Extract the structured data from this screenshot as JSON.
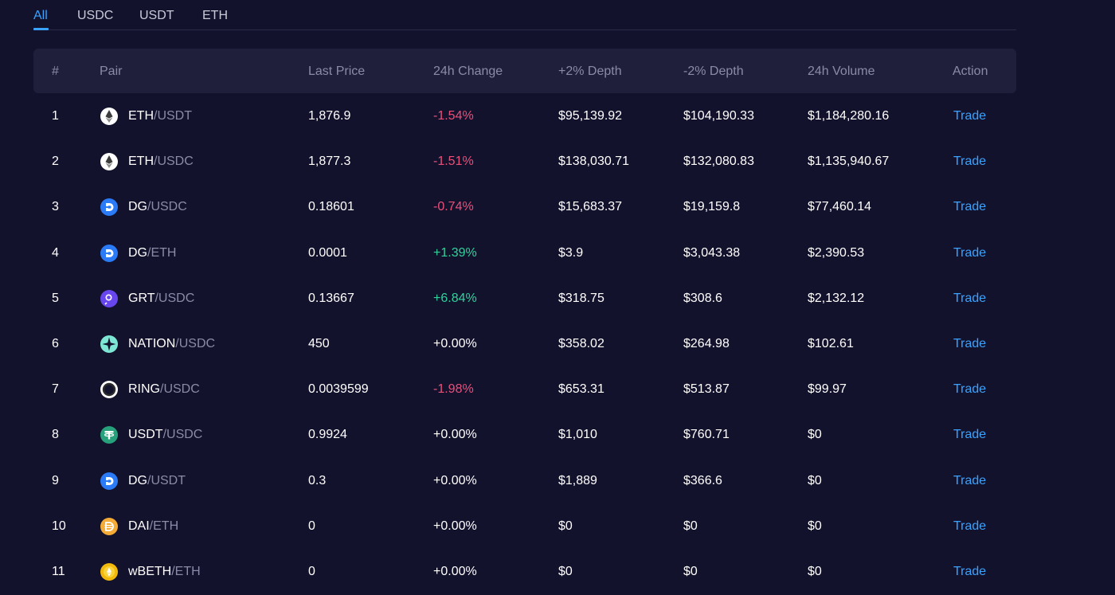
{
  "tabs": [
    {
      "label": "All",
      "active": true
    },
    {
      "label": "USDC",
      "active": false
    },
    {
      "label": "USDT",
      "active": false
    },
    {
      "label": "ETH",
      "active": false
    }
  ],
  "columns": [
    "#",
    "Pair",
    "Last Price",
    "24h Change",
    "+2% Depth",
    "-2% Depth",
    "24h Volume",
    "Action"
  ],
  "colors": {
    "accent": "#3aa2ff",
    "positive": "#2ed39b",
    "negative": "#ea4f7a"
  },
  "rows": [
    {
      "num": "1",
      "base": "ETH",
      "quote": "/USDT",
      "icon": "eth-icon",
      "last": "1,876.9",
      "change": "-1.54%",
      "dir": "neg",
      "plus_depth": "$95,139.92",
      "minus_depth": "$104,190.33",
      "volume": "$1,184,280.16",
      "action": "Trade"
    },
    {
      "num": "2",
      "base": "ETH",
      "quote": "/USDC",
      "icon": "eth-icon",
      "last": "1,877.3",
      "change": "-1.51%",
      "dir": "neg",
      "plus_depth": "$138,030.71",
      "minus_depth": "$132,080.83",
      "volume": "$1,135,940.67",
      "action": "Trade"
    },
    {
      "num": "3",
      "base": "DG",
      "quote": "/USDC",
      "icon": "dg-icon",
      "last": "0.18601",
      "change": "-0.74%",
      "dir": "neg",
      "plus_depth": "$15,683.37",
      "minus_depth": "$19,159.8",
      "volume": "$77,460.14",
      "action": "Trade"
    },
    {
      "num": "4",
      "base": "DG",
      "quote": "/ETH",
      "icon": "dg-icon",
      "last": "0.0001",
      "change": "+1.39%",
      "dir": "pos",
      "plus_depth": "$3.9",
      "minus_depth": "$3,043.38",
      "volume": "$2,390.53",
      "action": "Trade"
    },
    {
      "num": "5",
      "base": "GRT",
      "quote": "/USDC",
      "icon": "grt-icon",
      "last": "0.13667",
      "change": "+6.84%",
      "dir": "pos",
      "plus_depth": "$318.75",
      "minus_depth": "$308.6",
      "volume": "$2,132.12",
      "action": "Trade"
    },
    {
      "num": "6",
      "base": "NATION",
      "quote": "/USDC",
      "icon": "nation-icon",
      "last": "450",
      "change": "+0.00%",
      "dir": "neutral",
      "plus_depth": "$358.02",
      "minus_depth": "$264.98",
      "volume": "$102.61",
      "action": "Trade"
    },
    {
      "num": "7",
      "base": "RING",
      "quote": "/USDC",
      "icon": "ring-icon",
      "last": "0.0039599",
      "change": "-1.98%",
      "dir": "neg",
      "plus_depth": "$653.31",
      "minus_depth": "$513.87",
      "volume": "$99.97",
      "action": "Trade"
    },
    {
      "num": "8",
      "base": "USDT",
      "quote": "/USDC",
      "icon": "usdt-icon",
      "last": "0.9924",
      "change": "+0.00%",
      "dir": "neutral",
      "plus_depth": "$1,010",
      "minus_depth": "$760.71",
      "volume": "$0",
      "action": "Trade"
    },
    {
      "num": "9",
      "base": "DG",
      "quote": "/USDT",
      "icon": "dg-icon",
      "last": "0.3",
      "change": "+0.00%",
      "dir": "neutral",
      "plus_depth": "$1,889",
      "minus_depth": "$366.6",
      "volume": "$0",
      "action": "Trade"
    },
    {
      "num": "10",
      "base": "DAI",
      "quote": "/ETH",
      "icon": "dai-icon",
      "last": "0",
      "change": "+0.00%",
      "dir": "neutral",
      "plus_depth": "$0",
      "minus_depth": "$0",
      "volume": "$0",
      "action": "Trade"
    },
    {
      "num": "11",
      "base": "wBETH",
      "quote": "/ETH",
      "icon": "wbeth-icon",
      "last": "0",
      "change": "+0.00%",
      "dir": "neutral",
      "plus_depth": "$0",
      "minus_depth": "$0",
      "volume": "$0",
      "action": "Trade"
    }
  ]
}
